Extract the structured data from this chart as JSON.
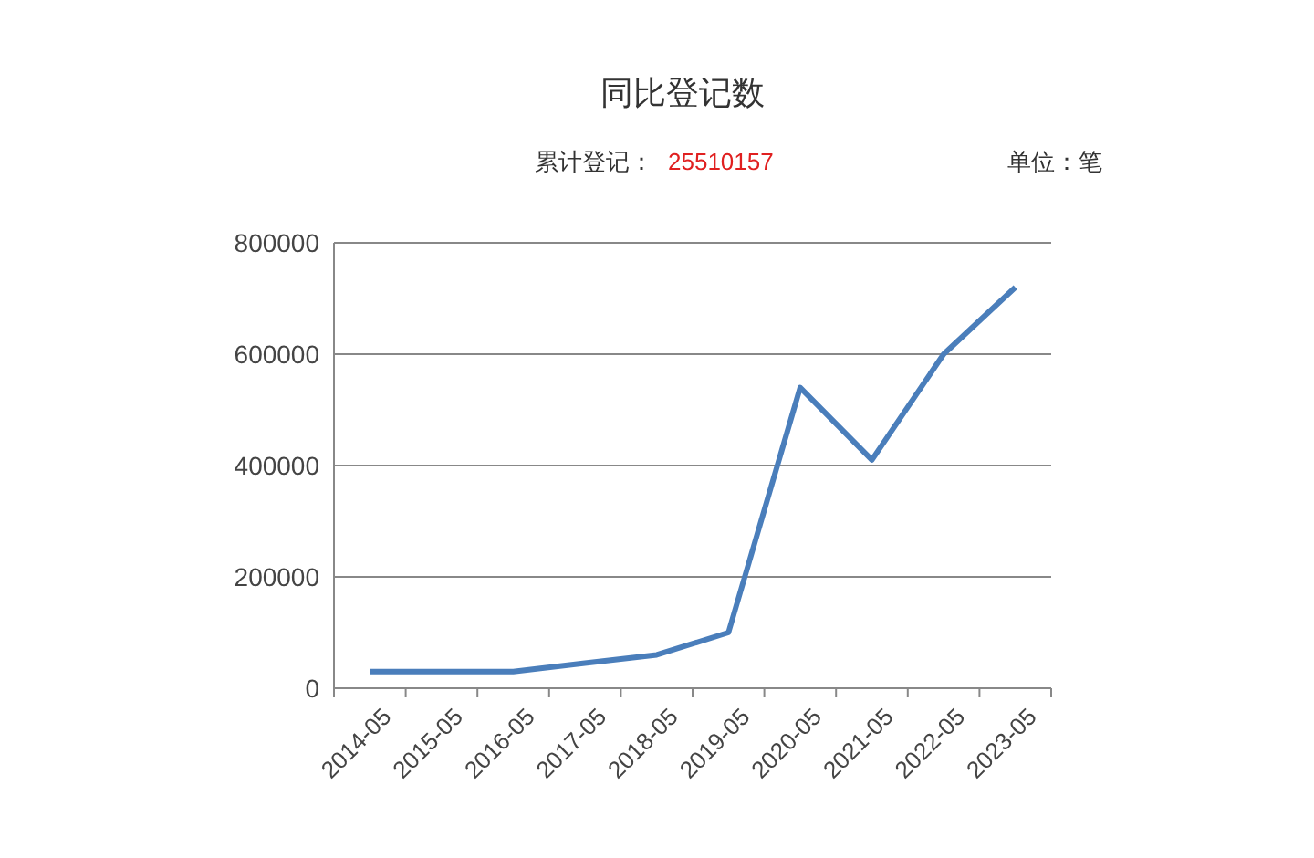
{
  "chart_data": {
    "type": "line",
    "title": "同比登记数",
    "annotations": [
      "累计登记：",
      "25510157",
      "单位：笔"
    ],
    "categories": [
      "2014-05",
      "2015-05",
      "2016-05",
      "2017-05",
      "2018-05",
      "2019-05",
      "2020-05",
      "2021-05",
      "2022-05",
      "2023-05"
    ],
    "series": [
      {
        "color": "#4a7ebb",
        "values": [
          30000,
          30000,
          30000,
          45000,
          60000,
          100000,
          540000,
          410000,
          600000,
          720000
        ]
      }
    ],
    "ylim": [
      0,
      800000
    ],
    "yticks": [
      0,
      200000,
      400000,
      600000,
      800000
    ],
    "grid": "y",
    "marker": "none",
    "line_style": "solid"
  }
}
